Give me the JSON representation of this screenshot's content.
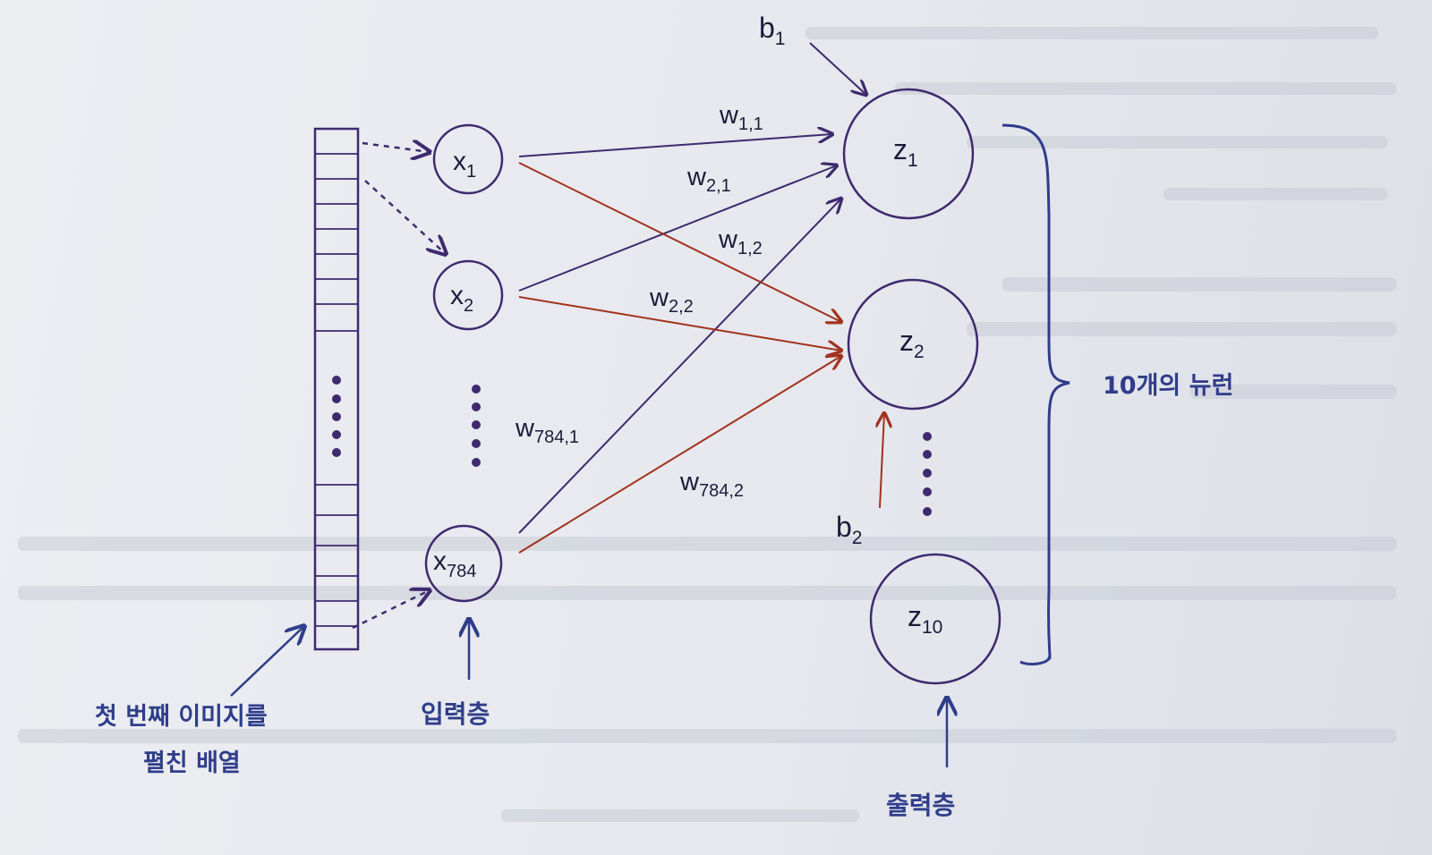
{
  "colors": {
    "purple": "#3f2a6e",
    "red": "#a2321f",
    "blue": "#2f3d8a",
    "background": "#e9ebef"
  },
  "inputs": {
    "x1": {
      "base": "x",
      "sub": "1"
    },
    "x2": {
      "base": "x",
      "sub": "2"
    },
    "x784": {
      "base": "x",
      "sub": "784"
    }
  },
  "outputs": {
    "z1": {
      "base": "z",
      "sub": "1"
    },
    "z2": {
      "base": "z",
      "sub": "2"
    },
    "z10": {
      "base": "z",
      "sub": "10"
    }
  },
  "weights": {
    "w11": {
      "base": "w",
      "sub": "1,1"
    },
    "w21": {
      "base": "w",
      "sub": "2,1"
    },
    "w12": {
      "base": "w",
      "sub": "1,2"
    },
    "w22": {
      "base": "w",
      "sub": "2,2"
    },
    "w7841": {
      "base": "w",
      "sub": "784,1"
    },
    "w7842": {
      "base": "w",
      "sub": "784,2"
    }
  },
  "biases": {
    "b1": {
      "base": "b",
      "sub": "1"
    },
    "b2": {
      "base": "b",
      "sub": "2"
    }
  },
  "annotations": {
    "neuron_count": "10개의 뉴런",
    "input_layer": "입력층",
    "output_layer": "출력층",
    "array_line1": "첫 번째 이미지를",
    "array_line2": "펼친 배열"
  }
}
